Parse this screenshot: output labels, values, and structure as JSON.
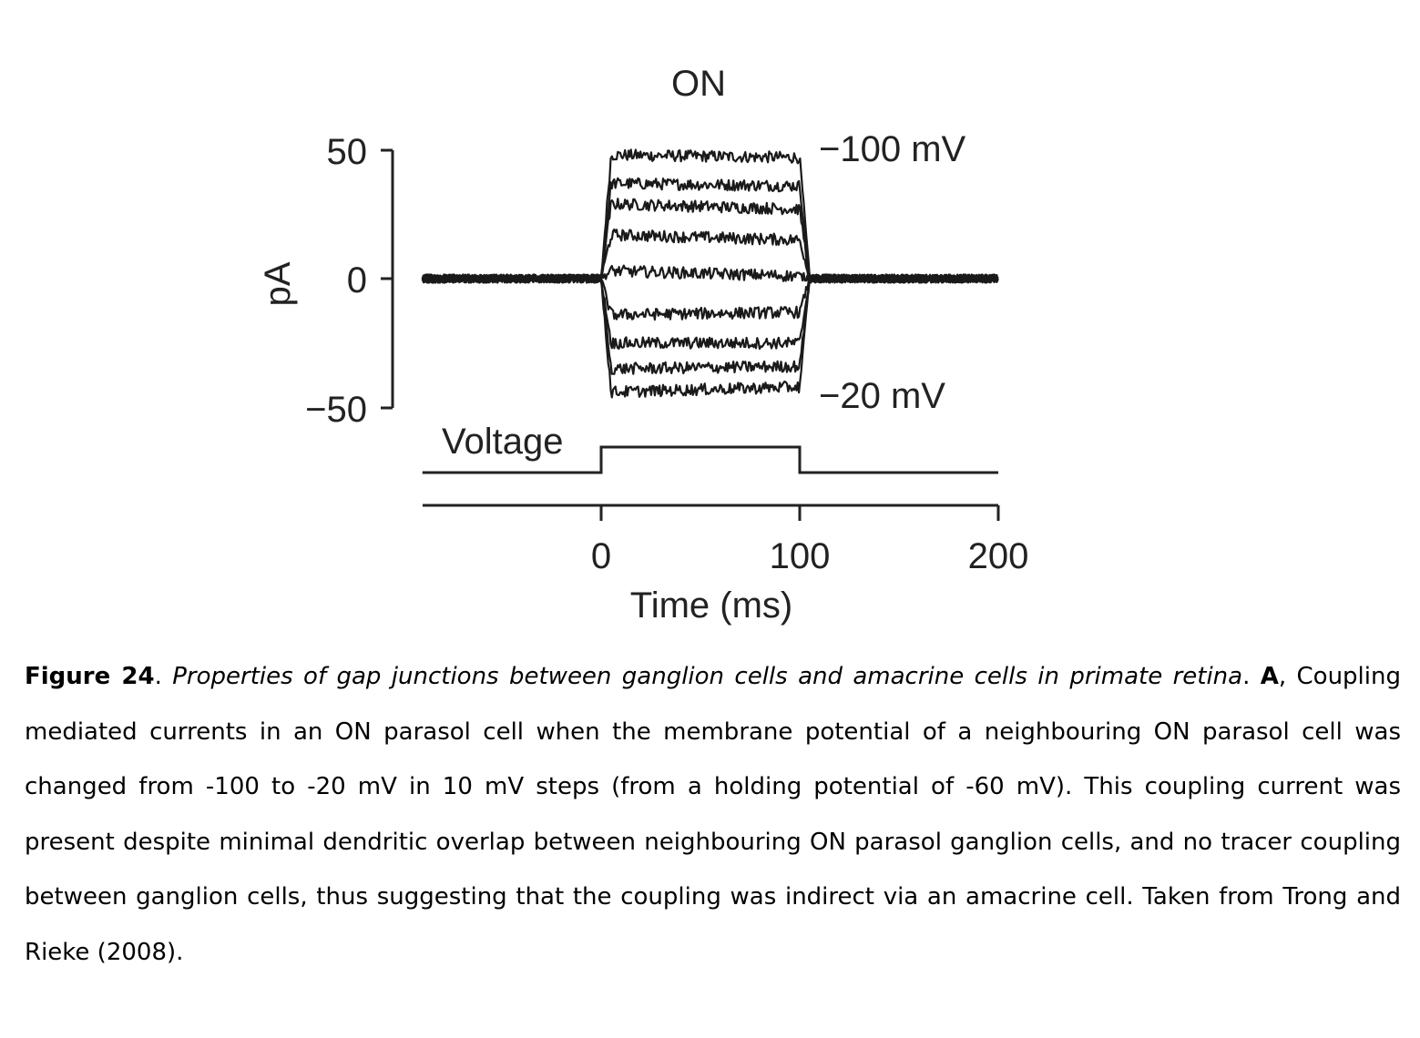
{
  "chart_data": {
    "type": "line",
    "title": "ON",
    "ylabel": "pA",
    "xlabel": "Time (ms)",
    "ylim": [
      -50,
      50
    ],
    "yticks": [
      "50",
      "0",
      "−50"
    ],
    "xlim": [
      -90,
      200
    ],
    "xticks": [
      "0",
      "100",
      "200"
    ],
    "step_window_ms": [
      0,
      100
    ],
    "annotations": {
      "top_trace": "−100 mV",
      "bottom_trace": "−20 mV",
      "voltage": "Voltage"
    },
    "series": [
      {
        "name": "−100 mV",
        "values": [
          {
            "x": -90,
            "y": 0
          },
          {
            "x": 0,
            "y": 0
          },
          {
            "x": 5,
            "y": 48
          },
          {
            "x": 100,
            "y": 47
          },
          {
            "x": 105,
            "y": 0
          },
          {
            "x": 200,
            "y": 0
          }
        ]
      },
      {
        "name": "",
        "values": [
          {
            "x": -90,
            "y": 0
          },
          {
            "x": 0,
            "y": 0
          },
          {
            "x": 5,
            "y": 37
          },
          {
            "x": 100,
            "y": 36
          },
          {
            "x": 105,
            "y": 0
          },
          {
            "x": 200,
            "y": 0
          }
        ]
      },
      {
        "name": "",
        "values": [
          {
            "x": -90,
            "y": 0
          },
          {
            "x": 0,
            "y": 0
          },
          {
            "x": 5,
            "y": 29
          },
          {
            "x": 100,
            "y": 27
          },
          {
            "x": 105,
            "y": 0
          },
          {
            "x": 200,
            "y": 0
          }
        ]
      },
      {
        "name": "",
        "values": [
          {
            "x": -90,
            "y": 0
          },
          {
            "x": 0,
            "y": 0
          },
          {
            "x": 5,
            "y": 17
          },
          {
            "x": 100,
            "y": 15
          },
          {
            "x": 105,
            "y": 0
          },
          {
            "x": 200,
            "y": 0
          }
        ]
      },
      {
        "name": "",
        "values": [
          {
            "x": -90,
            "y": 0
          },
          {
            "x": 0,
            "y": 0
          },
          {
            "x": 5,
            "y": 3
          },
          {
            "x": 100,
            "y": 1
          },
          {
            "x": 105,
            "y": 0
          },
          {
            "x": 200,
            "y": 0
          }
        ]
      },
      {
        "name": "",
        "values": [
          {
            "x": -90,
            "y": 0
          },
          {
            "x": 0,
            "y": 0
          },
          {
            "x": 5,
            "y": -14
          },
          {
            "x": 100,
            "y": -13
          },
          {
            "x": 105,
            "y": 0
          },
          {
            "x": 200,
            "y": 0
          }
        ]
      },
      {
        "name": "",
        "values": [
          {
            "x": -90,
            "y": 0
          },
          {
            "x": 0,
            "y": 0
          },
          {
            "x": 5,
            "y": -25
          },
          {
            "x": 100,
            "y": -25
          },
          {
            "x": 105,
            "y": 0
          },
          {
            "x": 200,
            "y": 0
          }
        ]
      },
      {
        "name": "",
        "values": [
          {
            "x": -90,
            "y": 0
          },
          {
            "x": 0,
            "y": 0
          },
          {
            "x": 5,
            "y": -35
          },
          {
            "x": 100,
            "y": -34
          },
          {
            "x": 105,
            "y": 0
          },
          {
            "x": 200,
            "y": 0
          }
        ]
      },
      {
        "name": "−20 mV",
        "values": [
          {
            "x": -90,
            "y": 0
          },
          {
            "x": 0,
            "y": 0
          },
          {
            "x": 5,
            "y": -44
          },
          {
            "x": 100,
            "y": -42
          },
          {
            "x": 105,
            "y": 0
          },
          {
            "x": 200,
            "y": 0
          }
        ]
      }
    ],
    "voltage_trace": [
      {
        "x": -90,
        "y": 0
      },
      {
        "x": 0,
        "y": 0
      },
      {
        "x": 0,
        "y": 1
      },
      {
        "x": 100,
        "y": 1
      },
      {
        "x": 100,
        "y": 0
      },
      {
        "x": 200,
        "y": 0
      }
    ]
  },
  "caption": {
    "figure_label": "Figure 24",
    "sep1": ". ",
    "title": "Properties of gap junctions between ganglion cells and amacrine cells in primate retina",
    "sep2": ". ",
    "panel_label": "A",
    "body": ", Coupling mediated currents in an ON parasol cell when the membrane potential of a neighbouring ON parasol cell was changed from -100 to -20 mV in 10 mV steps (from a holding potential of -60 mV). This coupling current was present despite minimal dendritic overlap between neighbouring ON parasol ganglion cells, and no tracer coupling between ganglion cells, thus suggesting that the coupling was indirect via an amacrine cell. Taken from Trong and Rieke (2008)."
  }
}
